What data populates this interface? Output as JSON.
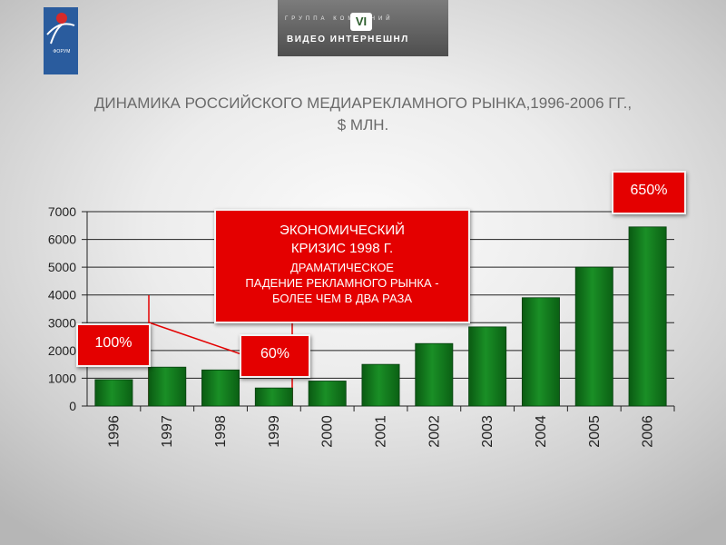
{
  "header": {
    "left_logo_text": "ФОРУМ",
    "right_logo_group_text": "ГРУППА КОМПАНИЙ",
    "right_logo_emblem": "VI",
    "right_logo_name": "ВИДЕО ИНТЕРНЕШНЛ"
  },
  "title": {
    "line1": "ДИНАМИКА РОССИЙСКОГО МЕДИАРЕКЛАМНОГО РЫНКА,1996-2006 ГГ.,",
    "line2": "$ МЛН."
  },
  "callouts": {
    "crisis_line1": "ЭКОНОМИЧЕСКИЙ",
    "crisis_line2": "КРИЗИС 1998 Г.",
    "crisis_line3": "ДРАМАТИЧЕСКОЕ",
    "crisis_line4": "ПАДЕНИЕ РЕКЛАМНОГО РЫНКА -",
    "crisis_line5": "БОЛЕЕ ЧЕМ В ДВА РАЗА",
    "pct_100": "100%",
    "pct_60": "60%",
    "pct_650": "650%"
  },
  "colors": {
    "bar_green": "#0f7a1a",
    "callout_red": "#e40000"
  },
  "chart_data": {
    "type": "bar",
    "categories": [
      "1996",
      "1997",
      "1998",
      "1999",
      "2000",
      "2001",
      "2002",
      "2003",
      "2004",
      "2005",
      "2006"
    ],
    "values": [
      950,
      1400,
      1300,
      650,
      900,
      1500,
      2250,
      2850,
      3900,
      5000,
      6450
    ],
    "yticks": [
      0,
      1000,
      2000,
      3000,
      4000,
      5000,
      6000,
      7000
    ],
    "ylim": [
      0,
      7000
    ],
    "grid": "horizontal"
  }
}
